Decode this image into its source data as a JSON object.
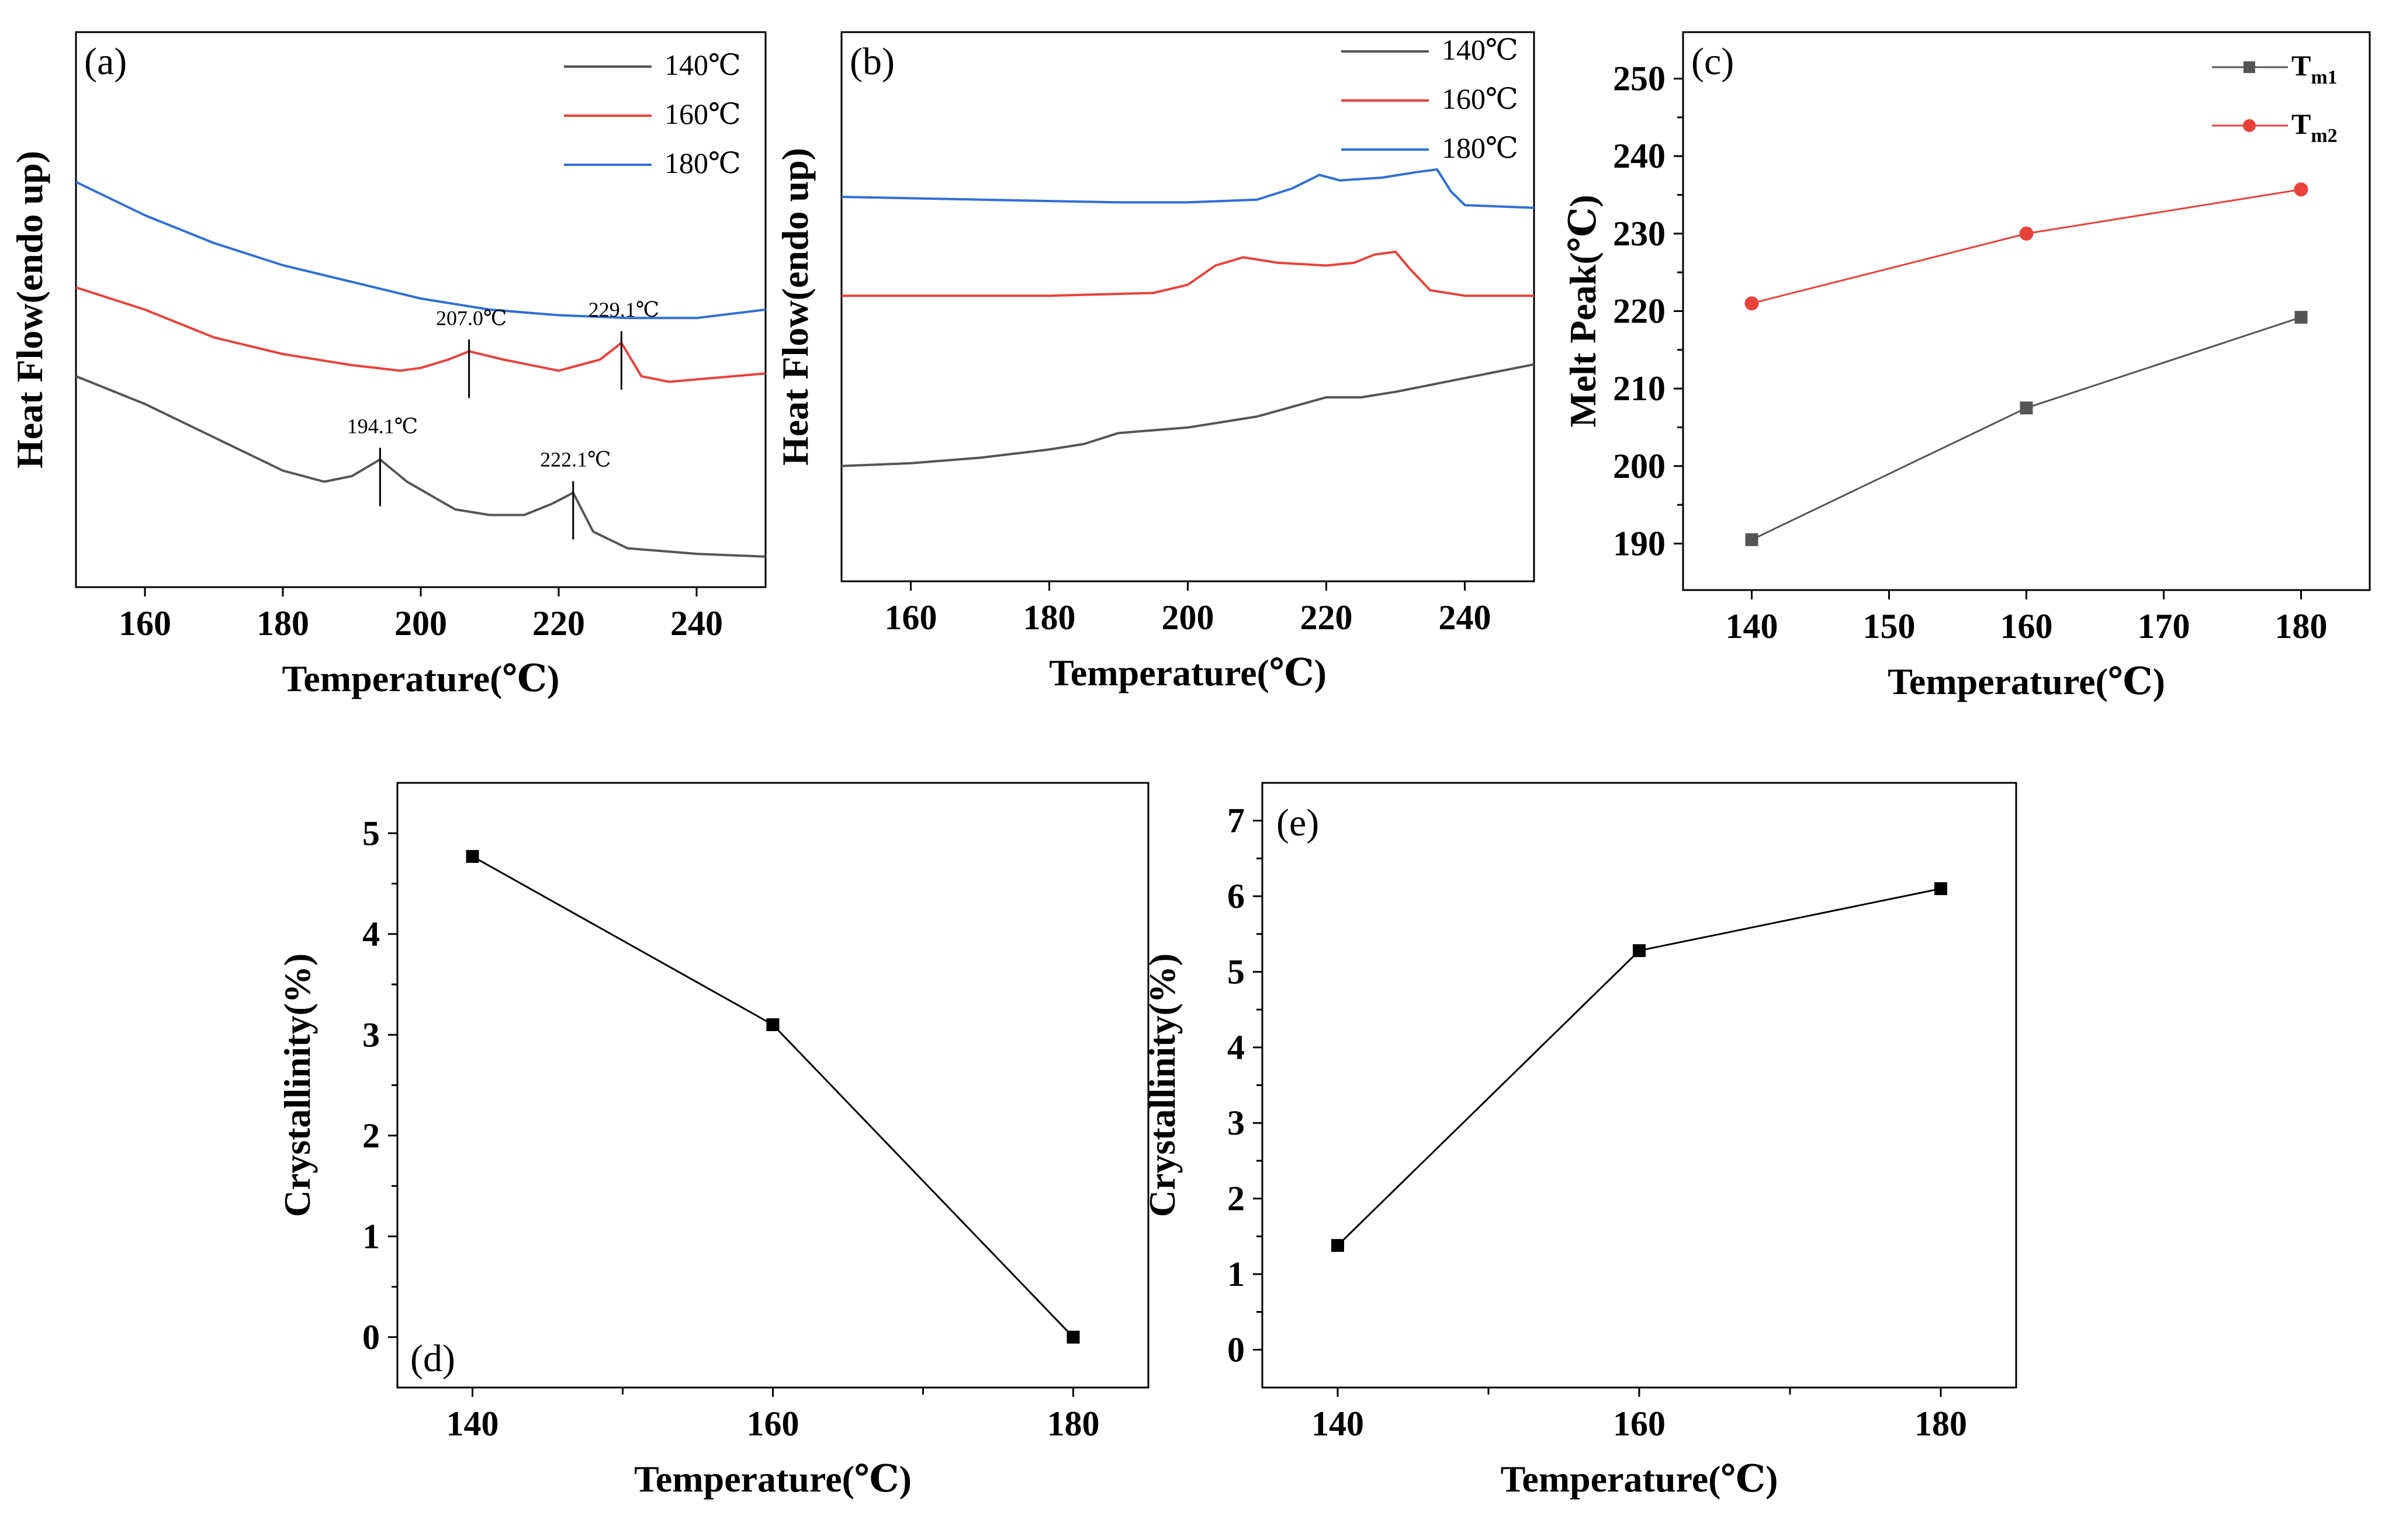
{
  "chart_data": [
    {
      "id": "a",
      "type": "line",
      "panel_label": "(a)",
      "xlabel": "Temperature(℃)",
      "ylabel": "Heat Flow(endo up)",
      "xlim": [
        150,
        250
      ],
      "x_ticks": [
        160,
        180,
        200,
        220,
        240
      ],
      "y_ticks_shown": false,
      "ylim": [
        0,
        100
      ],
      "legend_position": "top-right",
      "series": [
        {
          "name": "140℃",
          "color": "#555555",
          "points": [
            [
              150,
              38
            ],
            [
              160,
              33
            ],
            [
              170,
              27
            ],
            [
              180,
              21
            ],
            [
              186,
              19
            ],
            [
              190,
              20
            ],
            [
              194.1,
              23
            ],
            [
              198,
              19
            ],
            [
              205,
              14
            ],
            [
              210,
              13
            ],
            [
              215,
              13
            ],
            [
              219,
              15
            ],
            [
              222.1,
              17
            ],
            [
              225,
              10
            ],
            [
              230,
              7
            ],
            [
              240,
              6
            ],
            [
              250,
              5.5
            ]
          ]
        },
        {
          "name": "160℃",
          "color": "#e8423a",
          "points": [
            [
              150,
              54
            ],
            [
              160,
              50
            ],
            [
              170,
              45
            ],
            [
              180,
              42
            ],
            [
              190,
              40
            ],
            [
              197,
              39
            ],
            [
              200,
              39.5
            ],
            [
              204,
              41
            ],
            [
              207,
              42.5
            ],
            [
              212,
              41
            ],
            [
              220,
              39
            ],
            [
              226,
              41
            ],
            [
              229.1,
              44
            ],
            [
              232,
              38
            ],
            [
              236,
              37
            ],
            [
              250,
              38.5
            ]
          ]
        },
        {
          "name": "180℃",
          "color": "#2f6fd6",
          "points": [
            [
              150,
              73
            ],
            [
              160,
              67
            ],
            [
              170,
              62
            ],
            [
              180,
              58
            ],
            [
              190,
              55
            ],
            [
              200,
              52
            ],
            [
              210,
              50
            ],
            [
              220,
              49
            ],
            [
              230,
              48.5
            ],
            [
              240,
              48.5
            ],
            [
              250,
              50
            ]
          ]
        }
      ],
      "annotations": [
        {
          "text": "194.1℃",
          "x": 194.1,
          "y": 23
        },
        {
          "text": "222.1℃",
          "x": 222.1,
          "y": 17
        },
        {
          "text": "207.0℃",
          "x": 207.0,
          "y": 42.5
        },
        {
          "text": "229.1℃",
          "x": 229.1,
          "y": 44
        }
      ]
    },
    {
      "id": "b",
      "type": "line",
      "panel_label": "(b)",
      "xlabel": "Temperature(℃)",
      "ylabel": "Heat Flow(endo up)",
      "xlim": [
        150,
        250
      ],
      "x_ticks": [
        160,
        180,
        200,
        220,
        240
      ],
      "y_ticks_shown": false,
      "ylim": [
        0,
        100
      ],
      "legend_position": "top-right",
      "series": [
        {
          "name": "140℃",
          "color": "#555555",
          "points": [
            [
              150,
              21
            ],
            [
              160,
              21.5
            ],
            [
              170,
              22.5
            ],
            [
              180,
              24
            ],
            [
              185,
              25
            ],
            [
              190,
              27
            ],
            [
              200,
              28
            ],
            [
              210,
              30
            ],
            [
              220,
              33.5
            ],
            [
              225,
              33.5
            ],
            [
              230,
              34.5
            ],
            [
              240,
              37
            ],
            [
              250,
              39.5
            ]
          ]
        },
        {
          "name": "160℃",
          "color": "#e8423a",
          "points": [
            [
              150,
              52
            ],
            [
              160,
              52
            ],
            [
              170,
              52
            ],
            [
              180,
              52
            ],
            [
              195,
              52.5
            ],
            [
              200,
              54
            ],
            [
              204,
              57.5
            ],
            [
              208,
              59
            ],
            [
              213,
              58
            ],
            [
              220,
              57.5
            ],
            [
              224,
              58
            ],
            [
              227,
              59.5
            ],
            [
              230,
              60
            ],
            [
              232,
              57
            ],
            [
              235,
              53
            ],
            [
              240,
              52
            ],
            [
              250,
              52
            ]
          ]
        },
        {
          "name": "180℃",
          "color": "#2f6fd6",
          "points": [
            [
              150,
              70
            ],
            [
              170,
              69.5
            ],
            [
              190,
              69
            ],
            [
              200,
              69
            ],
            [
              210,
              69.5
            ],
            [
              215,
              71.5
            ],
            [
              219,
              74
            ],
            [
              222,
              73
            ],
            [
              228,
              73.5
            ],
            [
              233,
              74.5
            ],
            [
              236,
              75
            ],
            [
              238,
              71
            ],
            [
              240,
              68.5
            ],
            [
              250,
              68
            ]
          ]
        }
      ]
    },
    {
      "id": "c",
      "type": "line",
      "panel_label": "(c)",
      "xlabel": "Temperature(℃)",
      "ylabel": "Melt Peak(℃)",
      "xlim": [
        135,
        185
      ],
      "ylim": [
        184,
        256
      ],
      "x_ticks": [
        140,
        150,
        160,
        170,
        180
      ],
      "y_ticks": [
        190,
        200,
        210,
        220,
        230,
        240,
        250
      ],
      "legend_position": "top-right",
      "series": [
        {
          "name": "T",
          "subscript": "m1",
          "color": "#555555",
          "marker": "square",
          "x": [
            140,
            160,
            180
          ],
          "values": [
            190.5,
            207.5,
            219.2
          ]
        },
        {
          "name": "T",
          "subscript": "m2",
          "color": "#e8423a",
          "marker": "circle",
          "x": [
            140,
            160,
            180
          ],
          "values": [
            221,
            230,
            235.7
          ]
        }
      ]
    },
    {
      "id": "d",
      "type": "line",
      "panel_label": "(d)",
      "xlabel": "Temperature(℃)",
      "ylabel": "Crystallinity(%)",
      "xlim": [
        135,
        185
      ],
      "ylim": [
        -0.5,
        5.5
      ],
      "x_ticks": [
        140,
        160,
        180
      ],
      "x_minor_ticks": [
        150,
        170
      ],
      "y_ticks": [
        0,
        1,
        2,
        3,
        4,
        5
      ],
      "series": [
        {
          "color": "#000000",
          "marker": "square",
          "x": [
            140,
            160,
            180
          ],
          "values": [
            4.77,
            3.1,
            0.0
          ]
        }
      ]
    },
    {
      "id": "e",
      "type": "line",
      "panel_label": "(e)",
      "xlabel": "Temperature(℃)",
      "ylabel": "Crystallinity(%)",
      "xlim": [
        135,
        185
      ],
      "ylim": [
        -0.5,
        7.5
      ],
      "x_ticks": [
        140,
        160,
        180
      ],
      "x_minor_ticks": [
        150,
        170
      ],
      "y_ticks": [
        0,
        1,
        2,
        3,
        4,
        5,
        6,
        7
      ],
      "series": [
        {
          "color": "#000000",
          "marker": "square",
          "x": [
            140,
            160,
            180
          ],
          "values": [
            1.38,
            5.28,
            6.1
          ]
        }
      ]
    }
  ]
}
